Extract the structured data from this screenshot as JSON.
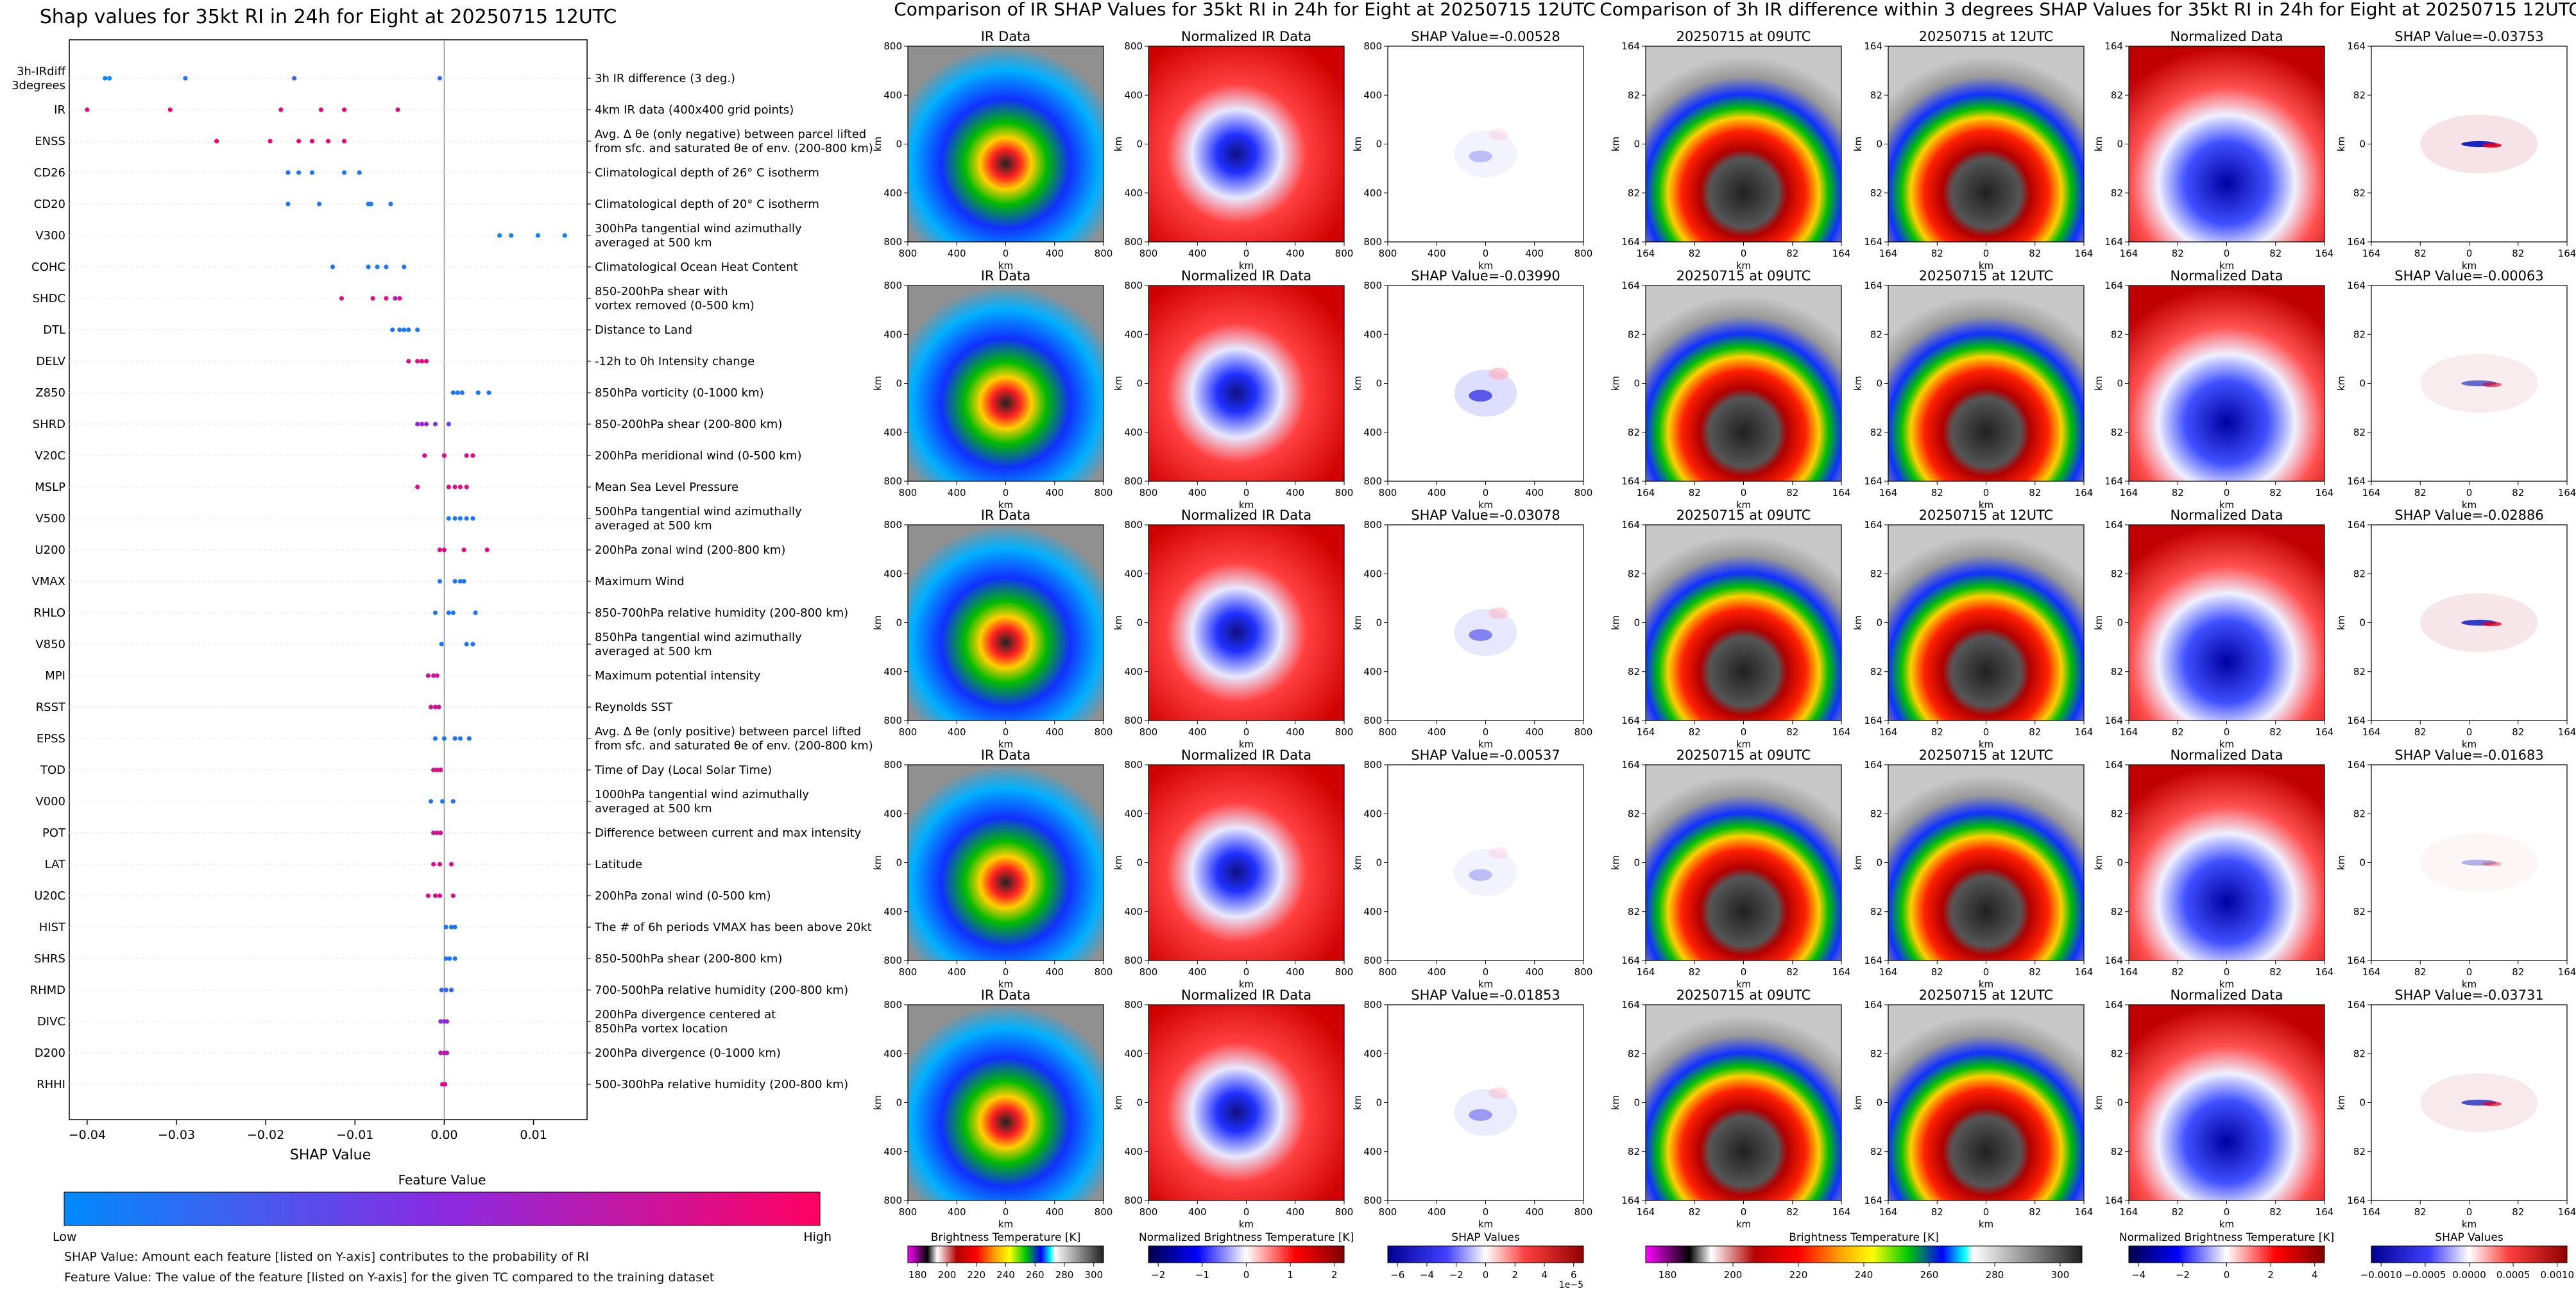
{
  "colors": {
    "low": "#008afb",
    "mid": "#8a2be2",
    "high": "#ff0060",
    "grid": "#e6e6e6"
  },
  "chart_data": [
    {
      "type": "scatter",
      "title": "Shap values for 35kt RI in 24h for Eight at 20250715 12UTC",
      "xlabel": "SHAP Value",
      "xlim": [
        -0.042,
        0.016
      ],
      "xticks": [
        -0.04,
        -0.03,
        -0.02,
        -0.01,
        0.0,
        0.01
      ],
      "xtick_labels": [
        "−0.04",
        "−0.03",
        "−0.02",
        "−0.01",
        "0.00",
        "0.01"
      ],
      "colorbar": {
        "title": "Feature Value",
        "low_label": "Low",
        "high_label": "High"
      },
      "features": [
        {
          "name": "3h-IRdiff\n3degrees",
          "description": "3h IR difference (3 deg.)",
          "points": [
            [
              -0.0375,
              0.0
            ],
            [
              -0.038,
              0.05
            ],
            [
              -0.029,
              0.1
            ],
            [
              -0.0168,
              0.2
            ],
            [
              -0.0005,
              0.15
            ]
          ]
        },
        {
          "name": "IR",
          "description": "4km IR data (400x400 grid points)",
          "points": [
            [
              -0.04,
              0.9
            ],
            [
              -0.0307,
              0.9
            ],
            [
              -0.0183,
              0.9
            ],
            [
              -0.0138,
              0.9
            ],
            [
              -0.0112,
              0.9
            ],
            [
              -0.0052,
              0.85
            ]
          ]
        },
        {
          "name": "ENSS",
          "description": "Avg. Δ θe (only negative) between parcel lifted\nfrom sfc. and saturated θe of env. (200-800 km)",
          "points": [
            [
              -0.0255,
              0.95
            ],
            [
              -0.0195,
              0.9
            ],
            [
              -0.0163,
              0.9
            ],
            [
              -0.0148,
              0.9
            ],
            [
              -0.013,
              0.9
            ],
            [
              -0.0112,
              0.9
            ]
          ]
        },
        {
          "name": "CD26",
          "description": "Climatological depth of 26° C isotherm",
          "points": [
            [
              -0.0175,
              0.1
            ],
            [
              -0.0163,
              0.1
            ],
            [
              -0.0148,
              0.1
            ],
            [
              -0.0112,
              0.1
            ],
            [
              -0.0095,
              0.1
            ]
          ]
        },
        {
          "name": "CD20",
          "description": "Climatological depth of 20° C isotherm",
          "points": [
            [
              -0.0175,
              0.1
            ],
            [
              -0.014,
              0.1
            ],
            [
              -0.0085,
              0.1
            ],
            [
              -0.0082,
              0.1
            ],
            [
              -0.006,
              0.1
            ]
          ]
        },
        {
          "name": "V300",
          "description": "300hPa tangential wind azimuthally\naveraged at 500 km",
          "points": [
            [
              0.0062,
              0.05
            ],
            [
              0.0075,
              0.05
            ],
            [
              0.0105,
              0.05
            ],
            [
              0.0135,
              0.05
            ]
          ]
        },
        {
          "name": "COHC",
          "description": "Climatological Ocean Heat Content",
          "points": [
            [
              -0.0125,
              0.1
            ],
            [
              -0.0085,
              0.1
            ],
            [
              -0.0075,
              0.1
            ],
            [
              -0.0065,
              0.1
            ],
            [
              -0.0045,
              0.1
            ]
          ]
        },
        {
          "name": "SHDC",
          "description": "850-200hPa shear with\nvortex removed (0-500 km)",
          "points": [
            [
              -0.0115,
              0.85
            ],
            [
              -0.008,
              0.85
            ],
            [
              -0.0065,
              0.85
            ],
            [
              -0.0055,
              0.6
            ],
            [
              -0.005,
              0.85
            ]
          ]
        },
        {
          "name": "DTL",
          "description": "Distance to Land",
          "points": [
            [
              -0.0058,
              0.1
            ],
            [
              -0.005,
              0.1
            ],
            [
              -0.0045,
              0.1
            ],
            [
              -0.004,
              0.1
            ],
            [
              -0.003,
              0.1
            ]
          ]
        },
        {
          "name": "DELV",
          "description": "-12h to 0h Intensity change",
          "points": [
            [
              -0.004,
              0.85
            ],
            [
              -0.003,
              0.85
            ],
            [
              -0.0025,
              0.85
            ],
            [
              -0.002,
              0.85
            ]
          ]
        },
        {
          "name": "Z850",
          "description": "850hPa vorticity (0-1000 km)",
          "points": [
            [
              0.001,
              0.1
            ],
            [
              0.0015,
              0.1
            ],
            [
              0.002,
              0.1
            ],
            [
              0.0038,
              0.1
            ],
            [
              0.005,
              0.1
            ]
          ]
        },
        {
          "name": "SHRD",
          "description": "850-200hPa shear (200-800 km)",
          "points": [
            [
              -0.003,
              0.55
            ],
            [
              -0.0025,
              0.55
            ],
            [
              -0.002,
              0.55
            ],
            [
              -0.001,
              0.4
            ],
            [
              0.0005,
              0.4
            ]
          ]
        },
        {
          "name": "V20C",
          "description": "200hPa meridional wind (0-500 km)",
          "points": [
            [
              -0.0022,
              0.85
            ],
            [
              0.0,
              0.85
            ],
            [
              0.0025,
              0.85
            ],
            [
              0.0032,
              0.85
            ]
          ]
        },
        {
          "name": "MSLP",
          "description": "Mean Sea Level Pressure",
          "points": [
            [
              -0.003,
              0.85
            ],
            [
              0.0005,
              0.85
            ],
            [
              0.0012,
              0.85
            ],
            [
              0.0018,
              0.85
            ],
            [
              0.0025,
              0.85
            ]
          ]
        },
        {
          "name": "V500",
          "description": "500hPa tangential wind azimuthally\naveraged at 500 km",
          "points": [
            [
              0.0005,
              0.1
            ],
            [
              0.0012,
              0.1
            ],
            [
              0.0018,
              0.1
            ],
            [
              0.0025,
              0.1
            ],
            [
              0.0032,
              0.1
            ]
          ]
        },
        {
          "name": "U200",
          "description": "200hPa zonal wind (200-800 km)",
          "points": [
            [
              -0.0005,
              0.85
            ],
            [
              0.0,
              0.85
            ],
            [
              0.0022,
              0.85
            ],
            [
              0.0048,
              0.85
            ]
          ]
        },
        {
          "name": "VMAX",
          "description": "Maximum Wind",
          "points": [
            [
              -0.0005,
              0.1
            ],
            [
              0.0012,
              0.1
            ],
            [
              0.0018,
              0.1
            ],
            [
              0.0022,
              0.1
            ]
          ]
        },
        {
          "name": "RHLO",
          "description": "850-700hPa relative humidity (200-800 km)",
          "points": [
            [
              -0.001,
              0.1
            ],
            [
              0.0005,
              0.1
            ],
            [
              0.001,
              0.1
            ],
            [
              0.0035,
              0.1
            ]
          ]
        },
        {
          "name": "V850",
          "description": "850hPa tangential wind azimuthally\naveraged at 500 km",
          "points": [
            [
              -0.0003,
              0.1
            ],
            [
              0.0025,
              0.1
            ],
            [
              0.0032,
              0.1
            ]
          ]
        },
        {
          "name": "MPI",
          "description": "Maximum potential intensity",
          "points": [
            [
              -0.0018,
              0.8
            ],
            [
              -0.0012,
              0.8
            ],
            [
              -0.0008,
              0.8
            ]
          ]
        },
        {
          "name": "RSST",
          "description": "Reynolds SST",
          "points": [
            [
              -0.0015,
              0.8
            ],
            [
              -0.001,
              0.8
            ],
            [
              -0.0006,
              0.8
            ]
          ]
        },
        {
          "name": "EPSS",
          "description": "Avg. Δ θe (only positive) between parcel lifted\nfrom sfc. and saturated θe of env. (200-800 km)",
          "points": [
            [
              -0.001,
              0.1
            ],
            [
              0.0,
              0.1
            ],
            [
              0.0012,
              0.1
            ],
            [
              0.0018,
              0.1
            ],
            [
              0.0028,
              0.1
            ]
          ]
        },
        {
          "name": "TOD",
          "description": "Time of Day (Local Solar Time)",
          "points": [
            [
              -0.0012,
              0.85
            ],
            [
              -0.0008,
              0.85
            ],
            [
              -0.0004,
              0.85
            ]
          ]
        },
        {
          "name": "V000",
          "description": "1000hPa tangential wind azimuthally\naveraged at 500 km",
          "points": [
            [
              -0.0015,
              0.1
            ],
            [
              -0.0002,
              0.1
            ],
            [
              0.001,
              0.1
            ]
          ]
        },
        {
          "name": "POT",
          "description": "Difference between current and max intensity",
          "points": [
            [
              -0.0012,
              0.8
            ],
            [
              -0.0008,
              0.8
            ],
            [
              -0.0004,
              0.8
            ]
          ]
        },
        {
          "name": "LAT",
          "description": "Latitude",
          "points": [
            [
              -0.0012,
              0.85
            ],
            [
              -0.0005,
              0.85
            ],
            [
              0.0008,
              0.85
            ]
          ]
        },
        {
          "name": "U20C",
          "description": "200hPa zonal wind (0-500 km)",
          "points": [
            [
              -0.0018,
              0.85
            ],
            [
              -0.001,
              0.85
            ],
            [
              -0.0005,
              0.85
            ],
            [
              0.001,
              0.85
            ]
          ]
        },
        {
          "name": "HIST",
          "description": "The # of 6h periods VMAX has been above 20kt",
          "points": [
            [
              0.0002,
              0.1
            ],
            [
              0.0008,
              0.1
            ],
            [
              0.0012,
              0.1
            ]
          ]
        },
        {
          "name": "SHRS",
          "description": "850-500hPa shear (200-800 km)",
          "points": [
            [
              0.0002,
              0.1
            ],
            [
              0.0006,
              0.1
            ],
            [
              0.0012,
              0.1
            ]
          ]
        },
        {
          "name": "RHMD",
          "description": "700-500hPa relative humidity (200-800 km)",
          "points": [
            [
              -0.0003,
              0.2
            ],
            [
              0.0002,
              0.2
            ],
            [
              0.0008,
              0.2
            ]
          ]
        },
        {
          "name": "DIVC",
          "description": "200hPa divergence centered at\n850hPa vortex location",
          "points": [
            [
              -0.0004,
              0.5
            ],
            [
              0.0,
              0.5
            ],
            [
              0.0003,
              0.5
            ]
          ]
        },
        {
          "name": "D200",
          "description": "200hPa divergence (0-1000 km)",
          "points": [
            [
              -0.0004,
              0.7
            ],
            [
              0.0,
              0.7
            ],
            [
              0.0003,
              0.7
            ]
          ]
        },
        {
          "name": "RHHI",
          "description": "500-300hPa relative humidity (200-800 km)",
          "points": [
            [
              -0.0002,
              0.85
            ],
            [
              0.0001,
              0.85
            ]
          ]
        }
      ]
    },
    {
      "type": "heatmap",
      "title": "Comparison of IR SHAP Values for 35kt RI in 24h for Eight at 20250715 12UTC",
      "columns": [
        "IR Data",
        "Normalized IR Data"
      ],
      "shap_titles": [
        "SHAP Value=-0.00528",
        "SHAP Value=-0.03990",
        "SHAP Value=-0.03078",
        "SHAP Value=-0.00537",
        "SHAP Value=-0.01853"
      ],
      "axis_label": "km",
      "ticks": [
        "800",
        "400",
        "0",
        "400",
        "800"
      ],
      "colorbars": [
        {
          "label": "Brightness Temperature [K]",
          "ticks": [
            "180",
            "200",
            "220",
            "240",
            "260",
            "280",
            "300"
          ]
        },
        {
          "label": "Normalized Brightness Temperature [K]",
          "ticks": [
            "−2",
            "−1",
            "0",
            "1",
            "2"
          ]
        },
        {
          "label": "SHAP Values",
          "ticks": [
            "−6",
            "−4",
            "−2",
            "0",
            "2",
            "4",
            "6"
          ],
          "exponent": "1e−5"
        }
      ]
    },
    {
      "type": "heatmap",
      "title": "Comparison of 3h IR difference within 3 degrees SHAP Values for 35kt RI in 24h for Eight at 20250715 12UTC",
      "columns": [
        "20250715 at 09UTC",
        "20250715 at 12UTC",
        "Normalized Data"
      ],
      "shap_titles": [
        "SHAP Value=-0.03753",
        "SHAP Value=-0.00063",
        "SHAP Value=-0.02886",
        "SHAP Value=-0.01683",
        "SHAP Value=-0.03731"
      ],
      "axis_label": "km",
      "ticks": [
        "164",
        "82",
        "0",
        "82",
        "164"
      ],
      "colorbars": [
        {
          "label": "Brightness Temperature [K]",
          "ticks": [
            "180",
            "200",
            "220",
            "240",
            "260",
            "280",
            "300"
          ]
        },
        {
          "label": "Normalized Brightness Temperature [K]",
          "ticks": [
            "−4",
            "−2",
            "0",
            "2",
            "4"
          ]
        },
        {
          "label": "SHAP Values",
          "ticks": [
            "−0.0010",
            "−0.0005",
            "0.0000",
            "0.0005",
            "0.0010"
          ]
        }
      ]
    }
  ],
  "footnotes": {
    "shap": "SHAP Value: Amount each feature [listed on Y-axis] contributes to the probability of RI",
    "feature": "Feature Value: The value of the feature [listed on Y-axis] for the given TC compared to the training dataset"
  }
}
